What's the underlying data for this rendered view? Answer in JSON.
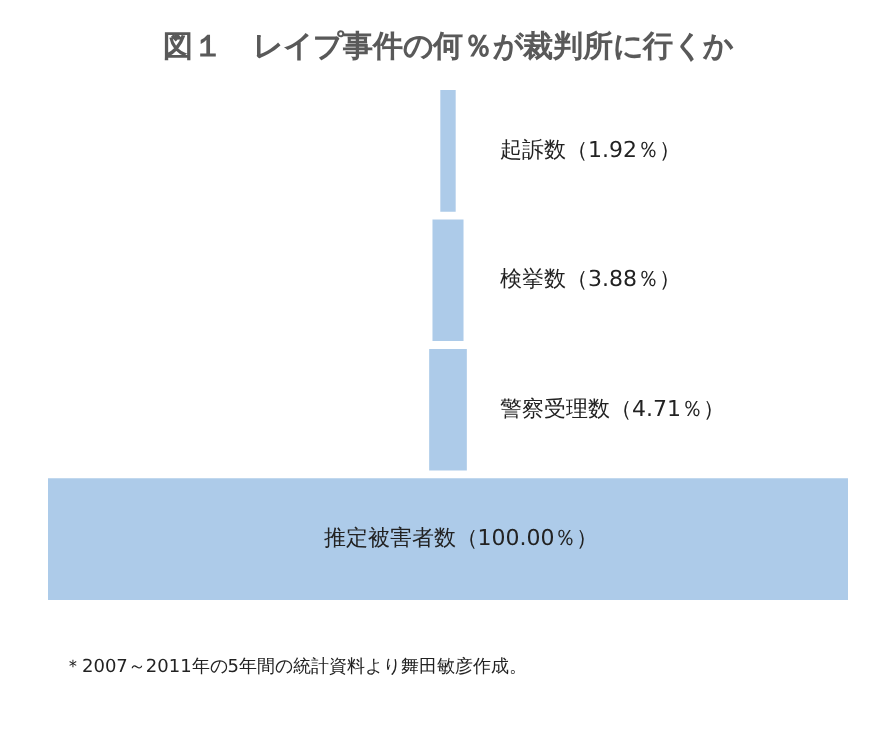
{
  "chart_data": {
    "type": "other",
    "title": "図１　レイプ事件の何％が裁判所に行くか",
    "categories": [
      "起訴数",
      "検挙数",
      "警察受理数",
      "推定被害者数"
    ],
    "values": [
      1.92,
      3.88,
      4.71,
      100.0
    ],
    "value_labels": [
      "（1.92％）",
      "（3.88％）",
      "（4.71％）",
      "（100.00％）"
    ],
    "color": "#adcbe9",
    "annotations": [
      "＊2007～2011年の5年間の統計資料より舞田敏彦作成。"
    ]
  }
}
